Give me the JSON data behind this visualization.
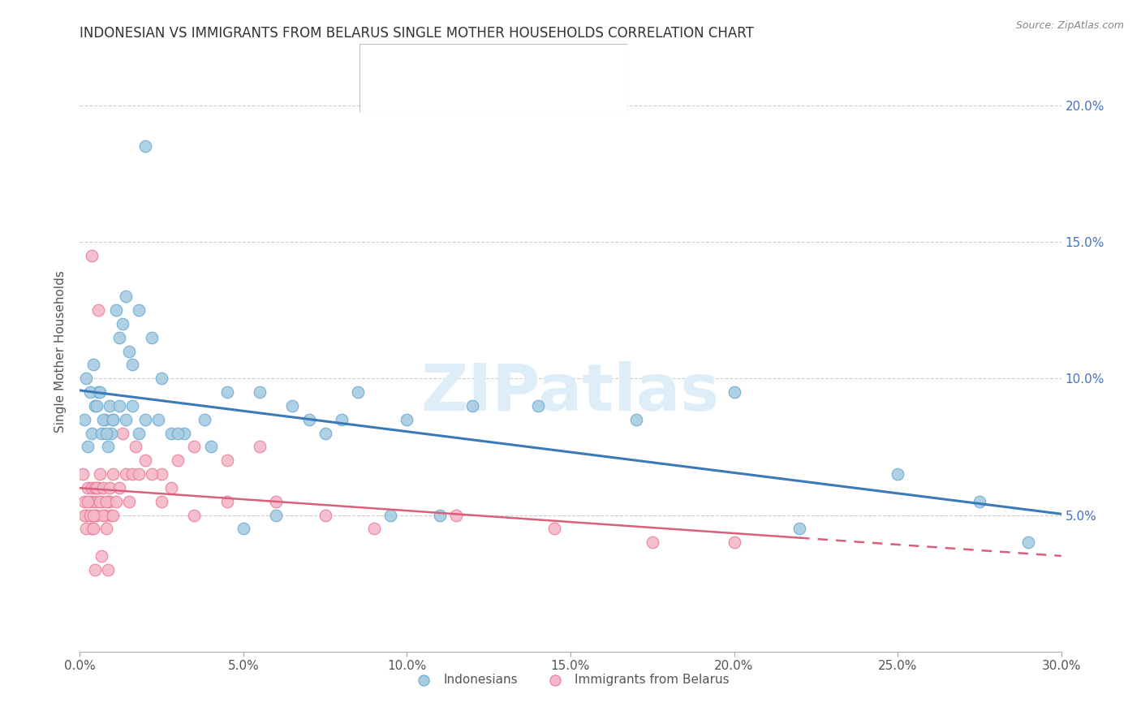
{
  "title": "INDONESIAN VS IMMIGRANTS FROM BELARUS SINGLE MOTHER HOUSEHOLDS CORRELATION CHART",
  "source": "Source: ZipAtlas.com",
  "ylabel_label": "Single Mother Households",
  "xlim": [
    0,
    30
  ],
  "ylim": [
    0,
    22
  ],
  "xtick_vals": [
    0,
    5,
    10,
    15,
    20,
    25,
    30
  ],
  "xtick_labels": [
    "0.0%",
    "5.0%",
    "10.0%",
    "15.0%",
    "20.0%",
    "25.0%",
    "30.0%"
  ],
  "ytick_vals": [
    5,
    10,
    15,
    20
  ],
  "ytick_labels": [
    "5.0%",
    "10.0%",
    "15.0%",
    "20.0%"
  ],
  "legend_labels": [
    "Indonesians",
    "Immigrants from Belarus"
  ],
  "blue_fill": "#a8cce0",
  "blue_edge": "#6aaad4",
  "pink_fill": "#f4b8c8",
  "pink_edge": "#e87a9a",
  "blue_line": "#3a7ab8",
  "pink_line": "#d95f7a",
  "watermark": "ZIPatlas",
  "watermark_color": "#ddeef8",
  "indonesian_x": [
    0.15,
    0.25,
    0.35,
    0.45,
    0.55,
    0.65,
    0.75,
    0.85,
    0.95,
    0.2,
    0.3,
    0.4,
    0.5,
    0.6,
    0.7,
    0.8,
    0.9,
    1.0,
    1.1,
    1.2,
    1.3,
    1.4,
    1.5,
    1.6,
    1.8,
    2.0,
    2.2,
    2.5,
    1.0,
    1.2,
    1.4,
    1.6,
    1.8,
    2.0,
    2.4,
    2.8,
    3.2,
    3.8,
    4.5,
    5.5,
    6.5,
    7.5,
    8.5,
    10.0,
    12.0,
    14.0,
    17.0,
    20.0,
    22.0,
    25.0,
    27.5,
    29.0,
    3.0,
    4.0,
    5.0,
    6.0,
    7.0,
    8.0,
    9.5,
    11.0
  ],
  "indonesian_y": [
    8.5,
    7.5,
    8.0,
    9.0,
    9.5,
    8.0,
    8.5,
    7.5,
    8.0,
    10.0,
    9.5,
    10.5,
    9.0,
    9.5,
    8.5,
    8.0,
    9.0,
    8.5,
    12.5,
    11.5,
    12.0,
    13.0,
    11.0,
    10.5,
    12.5,
    18.5,
    11.5,
    10.0,
    8.5,
    9.0,
    8.5,
    9.0,
    8.0,
    8.5,
    8.5,
    8.0,
    8.0,
    8.5,
    9.5,
    9.5,
    9.0,
    8.0,
    9.5,
    8.5,
    9.0,
    9.0,
    8.5,
    9.5,
    4.5,
    6.5,
    5.5,
    4.0,
    8.0,
    7.5,
    4.5,
    5.0,
    8.5,
    8.5,
    5.0,
    5.0
  ],
  "belarus_x": [
    0.1,
    0.15,
    0.2,
    0.25,
    0.3,
    0.35,
    0.4,
    0.45,
    0.5,
    0.15,
    0.25,
    0.35,
    0.45,
    0.55,
    0.65,
    0.75,
    0.85,
    0.95,
    0.2,
    0.3,
    0.4,
    0.5,
    0.6,
    0.7,
    0.8,
    0.9,
    1.0,
    0.4,
    0.5,
    0.6,
    0.7,
    0.8,
    0.9,
    1.0,
    1.1,
    1.2,
    1.4,
    1.6,
    1.8,
    2.0,
    2.5,
    3.0,
    3.5,
    4.5,
    5.5,
    1.5,
    2.5,
    3.5,
    4.5,
    6.0,
    7.5,
    9.0,
    11.5,
    14.5,
    17.5,
    20.0,
    0.35,
    0.55,
    1.3,
    1.7,
    2.2,
    2.8,
    0.45,
    0.65,
    0.85
  ],
  "belarus_y": [
    6.5,
    5.5,
    5.0,
    6.0,
    5.5,
    6.0,
    5.5,
    6.0,
    5.5,
    5.0,
    5.5,
    4.5,
    5.0,
    6.0,
    5.5,
    5.0,
    5.5,
    5.0,
    4.5,
    5.0,
    4.5,
    5.0,
    5.5,
    5.0,
    4.5,
    5.5,
    5.0,
    5.0,
    6.0,
    6.5,
    6.0,
    5.5,
    6.0,
    6.5,
    5.5,
    6.0,
    6.5,
    6.5,
    6.5,
    7.0,
    6.5,
    7.0,
    7.5,
    7.0,
    7.5,
    5.5,
    5.5,
    5.0,
    5.5,
    5.5,
    5.0,
    4.5,
    5.0,
    4.5,
    4.0,
    4.0,
    14.5,
    12.5,
    8.0,
    7.5,
    6.5,
    6.0,
    3.0,
    3.5,
    3.0
  ]
}
